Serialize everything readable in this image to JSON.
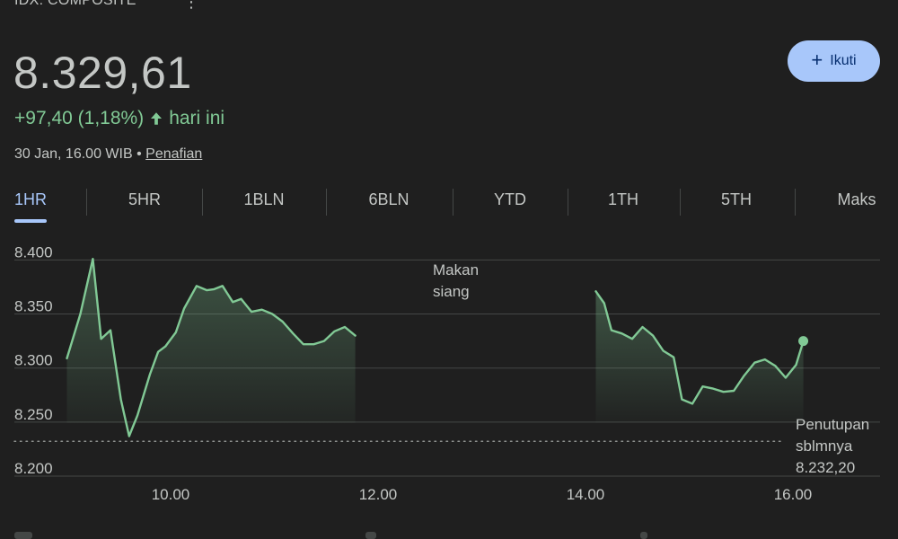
{
  "header": {
    "title": "IDX: COMPOSITE",
    "more_icon": "more-vert-icon",
    "price": "8.329,61",
    "change": "+97,40 (1,18%)",
    "change_suffix": "hari ini",
    "change_icon": "arrow-up-icon",
    "date": "30 Jan, 16.00 WIB",
    "separator": "•",
    "disclaimer": "Penafian",
    "follow_label": "Ikuti",
    "follow_icon": "plus-icon"
  },
  "colors": {
    "positive": "#81c995",
    "accent": "#a8c7fa",
    "button_text": "#062e6f"
  },
  "tabs": [
    {
      "label": "1HR",
      "active": true
    },
    {
      "label": "5HR"
    },
    {
      "label": "1BLN"
    },
    {
      "label": "6BLN"
    },
    {
      "label": "YTD"
    },
    {
      "label": "1TH"
    },
    {
      "label": "5TH"
    },
    {
      "label": "Maks"
    }
  ],
  "chart_data": {
    "type": "line",
    "ylim": [
      8200,
      8400
    ],
    "xlim": [
      9.0,
      17.0
    ],
    "y_ticks": [
      8200,
      8250,
      8300,
      8350,
      8400
    ],
    "y_tick_labels": [
      "8.200",
      "8.250",
      "8.300",
      "8.350",
      "8.400"
    ],
    "x_ticks": [
      10,
      12,
      14,
      16
    ],
    "x_tick_labels": [
      "10.00",
      "12.00",
      "14.00",
      "16.00"
    ],
    "grid": true,
    "lunch_label": "Makan siang",
    "previous_close": {
      "value": 8232.2,
      "label_line1": "Penutupan",
      "label_line2": "sblmnya",
      "value_label": "8.232,20"
    },
    "series": [
      {
        "segment": "session-1",
        "points": [
          [
            9.0,
            8309
          ],
          [
            9.13,
            8350
          ],
          [
            9.25,
            8401
          ],
          [
            9.33,
            8327
          ],
          [
            9.42,
            8335
          ],
          [
            9.52,
            8271
          ],
          [
            9.6,
            8237
          ],
          [
            9.68,
            8256
          ],
          [
            9.8,
            8294
          ],
          [
            9.88,
            8315
          ],
          [
            9.95,
            8320
          ],
          [
            10.05,
            8333
          ],
          [
            10.13,
            8355
          ],
          [
            10.25,
            8376
          ],
          [
            10.35,
            8372
          ],
          [
            10.42,
            8373
          ],
          [
            10.5,
            8376
          ],
          [
            10.6,
            8361
          ],
          [
            10.68,
            8364
          ],
          [
            10.78,
            8352
          ],
          [
            10.88,
            8354
          ],
          [
            10.98,
            8350
          ],
          [
            11.08,
            8343
          ],
          [
            11.18,
            8332
          ],
          [
            11.28,
            8322
          ],
          [
            11.38,
            8322
          ],
          [
            11.48,
            8325
          ],
          [
            11.58,
            8334
          ],
          [
            11.68,
            8338
          ],
          [
            11.78,
            8330
          ]
        ]
      },
      {
        "segment": "session-2",
        "points": [
          [
            14.1,
            8371
          ],
          [
            14.18,
            8360
          ],
          [
            14.25,
            8335
          ],
          [
            14.35,
            8332
          ],
          [
            14.45,
            8327
          ],
          [
            14.55,
            8338
          ],
          [
            14.65,
            8330
          ],
          [
            14.75,
            8316
          ],
          [
            14.85,
            8310
          ],
          [
            14.93,
            8271
          ],
          [
            15.03,
            8267
          ],
          [
            15.13,
            8283
          ],
          [
            15.23,
            8281
          ],
          [
            15.33,
            8278
          ],
          [
            15.43,
            8279
          ],
          [
            15.53,
            8293
          ],
          [
            15.63,
            8305
          ],
          [
            15.73,
            8308
          ],
          [
            15.83,
            8302
          ],
          [
            15.93,
            8291
          ],
          [
            16.03,
            8303
          ],
          [
            16.1,
            8325
          ]
        ]
      }
    ],
    "last_point": [
      16.1,
      8325
    ]
  }
}
